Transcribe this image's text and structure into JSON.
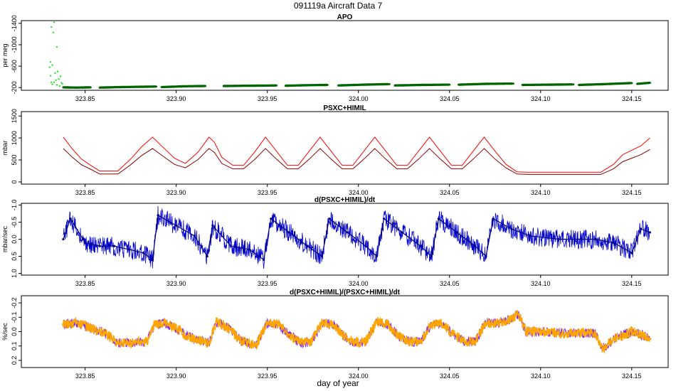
{
  "figure": {
    "title": "091119a    Aircraft Data 7",
    "xlabel": "day of year"
  },
  "chart_data": [
    {
      "type": "scatter",
      "title": "APO",
      "ylabel": "per meg",
      "xlim": [
        323.815,
        324.17
      ],
      "ylim": [
        -1450,
        -150
      ],
      "yreverse": true,
      "yticks": [
        -200,
        -600,
        -1000,
        -1400
      ],
      "yticklabels": [
        "-200",
        "-600",
        "-1000",
        "-1400"
      ],
      "xticks": [
        323.85,
        323.9,
        323.95,
        324.0,
        324.05,
        324.1,
        324.15
      ],
      "xticklabels": [
        "323.85",
        "323.90",
        "323.95",
        "324.00",
        "324.05",
        "324.10",
        "324.15"
      ],
      "colors": {
        "early": "#33dd33",
        "main": "#006400"
      },
      "series": [
        {
          "color_key": "early",
          "x": [
            323.8305,
            323.831,
            323.8315,
            323.832,
            323.8325,
            323.833,
            323.8335,
            323.834,
            323.8345,
            323.835,
            323.8355,
            323.836,
            323.8365,
            323.837,
            323.8375,
            323.831,
            323.8315,
            323.832,
            323.8345,
            323.833
          ],
          "y": [
            -580,
            -420,
            -300,
            -260,
            -1230,
            -1420,
            -470,
            -340,
            -250,
            -500,
            -360,
            -230,
            -410,
            -290,
            -270,
            -680,
            -1330,
            -620,
            -960,
            -300
          ]
        },
        {
          "color_key": "main",
          "segments": [
            [
              323.838,
              323.853
            ],
            [
              323.858,
              323.889
            ],
            [
              323.892,
              323.916
            ],
            [
              323.926,
              323.955
            ],
            [
              323.96,
              323.983
            ],
            [
              323.989,
              324.017
            ],
            [
              324.02,
              324.05
            ],
            [
              324.055,
              324.085
            ],
            [
              324.09,
              324.118
            ],
            [
              324.121,
              324.15
            ],
            [
              324.153,
              324.16
            ]
          ],
          "x": [
            323.838,
            323.845,
            323.853,
            323.858,
            323.87,
            323.88,
            323.889,
            323.892,
            323.905,
            323.916,
            323.926,
            323.94,
            323.955,
            323.96,
            323.972,
            323.983,
            323.989,
            324.003,
            324.017,
            324.02,
            324.035,
            324.05,
            324.055,
            324.07,
            324.085,
            324.09,
            324.105,
            324.118,
            324.121,
            324.135,
            324.15,
            324.153,
            324.16
          ],
          "y": [
            -205,
            -200,
            -205,
            -200,
            -210,
            -215,
            -220,
            -210,
            -225,
            -230,
            -230,
            -235,
            -240,
            -235,
            -245,
            -250,
            -240,
            -255,
            -265,
            -240,
            -250,
            -255,
            -255,
            -270,
            -275,
            -250,
            -255,
            -260,
            -250,
            -265,
            -285,
            -270,
            -290
          ]
        }
      ]
    },
    {
      "type": "line",
      "title": "PSXC+HIMIL",
      "ylabel": "mbar",
      "xlim": [
        323.815,
        324.17
      ],
      "ylim": [
        -50,
        1600
      ],
      "yticks": [
        0,
        500,
        1000,
        1500
      ],
      "yticklabels": [
        "0",
        "500",
        "1000",
        "1500"
      ],
      "xticks": [
        323.85,
        323.9,
        323.95,
        324.0,
        324.05,
        324.1,
        324.15
      ],
      "xticklabels": [
        "323.85",
        "323.90",
        "323.95",
        "324.00",
        "324.05",
        "324.10",
        "324.15"
      ],
      "colors": {
        "upper": "#ff0000",
        "lower": "#8b0000"
      },
      "x": [
        323.838,
        323.843,
        323.848,
        323.853,
        323.858,
        323.868,
        323.875,
        323.881,
        323.887,
        323.893,
        323.899,
        323.905,
        323.912,
        323.918,
        323.921,
        323.925,
        323.931,
        323.937,
        323.943,
        323.949,
        323.955,
        323.961,
        323.967,
        323.973,
        323.979,
        323.985,
        323.991,
        323.997,
        324.003,
        324.009,
        324.015,
        324.021,
        324.027,
        324.033,
        324.039,
        324.045,
        324.051,
        324.057,
        324.063,
        324.069,
        324.075,
        324.081,
        324.087,
        324.093,
        324.133,
        324.14,
        324.145,
        324.15,
        324.155,
        324.16
      ],
      "series": [
        {
          "name": "",
          "color_key": "upper",
          "values": [
            1020,
            750,
            520,
            380,
            250,
            250,
            520,
            800,
            1020,
            780,
            540,
            420,
            680,
            1020,
            900,
            560,
            380,
            380,
            680,
            1020,
            700,
            380,
            380,
            700,
            1020,
            700,
            380,
            380,
            700,
            1020,
            700,
            380,
            380,
            700,
            1020,
            700,
            380,
            380,
            700,
            1020,
            700,
            400,
            230,
            220,
            220,
            400,
            620,
            720,
            820,
            1000
          ]
        },
        {
          "name": "",
          "color_key": "lower",
          "values": [
            760,
            560,
            390,
            290,
            180,
            180,
            390,
            600,
            760,
            580,
            400,
            320,
            510,
            760,
            670,
            420,
            300,
            300,
            510,
            760,
            520,
            300,
            300,
            520,
            760,
            520,
            300,
            300,
            520,
            760,
            520,
            300,
            300,
            520,
            760,
            520,
            300,
            300,
            520,
            760,
            520,
            320,
            180,
            170,
            170,
            300,
            460,
            540,
            620,
            740
          ]
        }
      ]
    },
    {
      "type": "line",
      "title": "d(PSXC+HIMIL)/dt",
      "ylabel": "mbar/sec",
      "xlim": [
        323.815,
        324.17
      ],
      "ylim": [
        -1.05,
        1.05
      ],
      "yreverse": true,
      "yticks": [
        -1.0,
        -0.5,
        0.0,
        0.5,
        1.0
      ],
      "yticklabels": [
        "-1.0",
        "-0.5",
        "0.0",
        "0.5",
        "1.0"
      ],
      "xticks": [
        323.85,
        323.9,
        323.95,
        324.0,
        324.05,
        324.1,
        324.15
      ],
      "xticklabels": [
        "323.85",
        "323.90",
        "323.95",
        "324.00",
        "324.05",
        "324.10",
        "324.15"
      ],
      "colors": {
        "line": "#0000cd",
        "core": "#000080"
      },
      "x": [
        323.838,
        323.842,
        323.85,
        323.858,
        323.866,
        323.874,
        323.882,
        323.887,
        323.89,
        323.9,
        323.91,
        323.917,
        323.92,
        323.93,
        323.94,
        323.948,
        323.952,
        323.962,
        323.972,
        323.98,
        323.984,
        323.994,
        324.004,
        324.01,
        324.014,
        324.024,
        324.034,
        324.04,
        324.044,
        324.054,
        324.064,
        324.07,
        324.074,
        324.084,
        324.094,
        324.11,
        324.13,
        324.14,
        324.15,
        324.155,
        324.16
      ],
      "series": [
        {
          "name": "",
          "color_key": "line",
          "values": [
            0.0,
            -0.6,
            0.1,
            0.2,
            0.2,
            0.3,
            0.4,
            0.6,
            -0.7,
            -0.4,
            -0.1,
            0.5,
            -0.4,
            0.2,
            0.3,
            0.6,
            -0.6,
            -0.2,
            0.2,
            0.5,
            -0.6,
            -0.2,
            0.2,
            0.5,
            -0.6,
            -0.2,
            0.2,
            0.5,
            -0.6,
            -0.2,
            0.2,
            0.5,
            -0.6,
            -0.3,
            -0.1,
            0.0,
            0.0,
            0.1,
            0.4,
            -0.3,
            -0.2
          ]
        }
      ]
    },
    {
      "type": "line",
      "title": "d(PSXC+HIMIL)/(PSXC+HIMIL)/dt",
      "ylabel": "%/sec",
      "xlim": [
        323.815,
        324.17
      ],
      "ylim": [
        -0.25,
        0.25
      ],
      "yreverse": true,
      "yticks": [
        -0.2,
        -0.1,
        0.0,
        0.1,
        0.2
      ],
      "yticklabels": [
        "-0.2",
        "-0.1",
        "0.0",
        "0.1",
        "0.2"
      ],
      "xticks": [
        323.85,
        323.9,
        323.95,
        324.0,
        324.05,
        324.1,
        324.15
      ],
      "xticklabels": [
        "323.85",
        "323.90",
        "323.95",
        "324.00",
        "324.05",
        "324.10",
        "324.15"
      ],
      "colors": {
        "back": "#8a2be2",
        "front": "#ffa500"
      },
      "x": [
        323.838,
        323.845,
        323.852,
        323.858,
        323.862,
        323.868,
        323.876,
        323.884,
        323.888,
        323.894,
        323.9,
        323.906,
        323.912,
        323.918,
        323.922,
        323.928,
        323.936,
        323.944,
        323.95,
        323.956,
        323.962,
        323.968,
        323.974,
        323.98,
        323.986,
        323.992,
        323.998,
        324.004,
        324.01,
        324.016,
        324.022,
        324.028,
        324.034,
        324.04,
        324.046,
        324.052,
        324.058,
        324.064,
        324.07,
        324.076,
        324.082,
        324.088,
        324.092,
        324.1,
        324.11,
        324.12,
        324.13,
        324.134,
        324.14,
        324.146,
        324.15,
        324.155,
        324.16
      ],
      "series": [
        {
          "name": "",
          "color_key": "back",
          "values": [
            -0.05,
            -0.06,
            -0.03,
            0.0,
            0.02,
            0.08,
            0.08,
            0.07,
            -0.05,
            -0.06,
            -0.02,
            0.03,
            0.06,
            0.08,
            -0.07,
            -0.03,
            0.07,
            0.09,
            -0.06,
            -0.05,
            0.02,
            0.08,
            0.07,
            -0.06,
            -0.05,
            0.03,
            0.08,
            0.07,
            -0.07,
            -0.05,
            0.03,
            0.07,
            0.07,
            -0.05,
            -0.05,
            0.02,
            0.07,
            0.07,
            -0.06,
            -0.06,
            -0.08,
            -0.12,
            0.0,
            0.0,
            0.01,
            0.01,
            0.01,
            0.12,
            0.05,
            0.02,
            0.0,
            0.02,
            0.05
          ]
        },
        {
          "name": "",
          "color_key": "front",
          "values": [
            -0.05,
            -0.06,
            -0.03,
            0.0,
            0.02,
            0.08,
            0.08,
            0.07,
            -0.05,
            -0.06,
            -0.02,
            0.03,
            0.06,
            0.08,
            -0.07,
            -0.03,
            0.07,
            0.09,
            -0.06,
            -0.05,
            0.02,
            0.08,
            0.07,
            -0.06,
            -0.05,
            0.03,
            0.08,
            0.07,
            -0.07,
            -0.05,
            0.03,
            0.07,
            0.07,
            -0.05,
            -0.05,
            0.02,
            0.07,
            0.07,
            -0.06,
            -0.06,
            -0.08,
            -0.12,
            0.0,
            0.0,
            0.01,
            0.01,
            0.01,
            0.12,
            0.05,
            0.02,
            0.0,
            0.02,
            0.05
          ]
        }
      ]
    }
  ]
}
